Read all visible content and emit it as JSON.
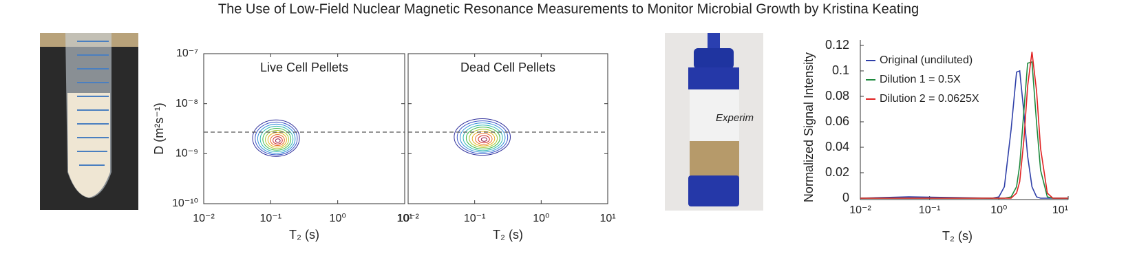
{
  "title": "The Use of Low-Field Nuclear Magnetic Resonance Measurements to Monitor Microbial Growth by Kristina Keating",
  "chart_data": [
    {
      "type": "contour",
      "xlabel": "T₂ (s)",
      "ylabel": "D (m²s⁻¹)",
      "log_x": true,
      "log_y": true,
      "xlim": [
        0.01,
        10
      ],
      "ylim": [
        1e-10,
        1e-07
      ],
      "xticks": [
        {
          "value": 0.01,
          "label": "10⁻²"
        },
        {
          "value": 0.1,
          "label": "10⁻¹"
        },
        {
          "value": 1,
          "label": "10⁰"
        },
        {
          "value": 10,
          "label": "10¹"
        }
      ],
      "yticks": [
        {
          "value": 1e-10,
          "label": "10⁻¹⁰"
        },
        {
          "value": 1e-09,
          "label": "10⁻⁹"
        },
        {
          "value": 1e-08,
          "label": "10⁻⁸"
        },
        {
          "value": 1e-07,
          "label": "10⁻⁷"
        }
      ],
      "reference_line": 2.7e-09,
      "panels": [
        {
          "title": "Live Cell Pellets",
          "peak": {
            "x": 0.12,
            "y": 1.8e-09
          }
        },
        {
          "title": "Dead Cell Pellets",
          "peak": {
            "x": 0.13,
            "y": 1.9e-09
          }
        }
      ]
    },
    {
      "type": "line",
      "xlabel": "T₂ (s)",
      "ylabel": "Normalized Signal Intensity",
      "log_x": true,
      "xlim": [
        0.01,
        10
      ],
      "ylim": [
        0,
        0.12
      ],
      "xticks": [
        {
          "value": 0.01,
          "label": "10⁻²"
        },
        {
          "value": 0.1,
          "label": "10⁻¹"
        },
        {
          "value": 1,
          "label": "10⁰"
        },
        {
          "value": 10,
          "label": "10¹"
        }
      ],
      "yticks": [
        0,
        0.02,
        0.04,
        0.06,
        0.08,
        0.1,
        0.12
      ],
      "legend": "upper left",
      "x": [
        0.01,
        0.05,
        0.8,
        1.0,
        1.2,
        1.5,
        1.8,
        2.0,
        2.3,
        2.6,
        3.0,
        3.5,
        4.0,
        5.0,
        6.0,
        10
      ],
      "series": [
        {
          "name": "Original (undiluted)",
          "color": "#2e3fa8",
          "values": [
            0,
            0.001,
            0,
            0.001,
            0.009,
            0.054,
            0.099,
            0.1,
            0.067,
            0.033,
            0.009,
            0.001,
            0,
            0,
            0,
            0
          ]
        },
        {
          "name": "Dilution 1 = 0.5X",
          "color": "#1e8a3e",
          "values": [
            0,
            0,
            0,
            0,
            0,
            0.001,
            0.009,
            0.026,
            0.069,
            0.106,
            0.107,
            0.059,
            0.022,
            0.001,
            0,
            0
          ]
        },
        {
          "name": "Dilution 2 = 0.0625X",
          "color": "#e02020",
          "values": [
            0,
            0,
            0,
            0,
            0,
            0,
            0.004,
            0.013,
            0.046,
            0.088,
            0.115,
            0.084,
            0.039,
            0.004,
            0,
            0
          ]
        }
      ]
    }
  ]
}
